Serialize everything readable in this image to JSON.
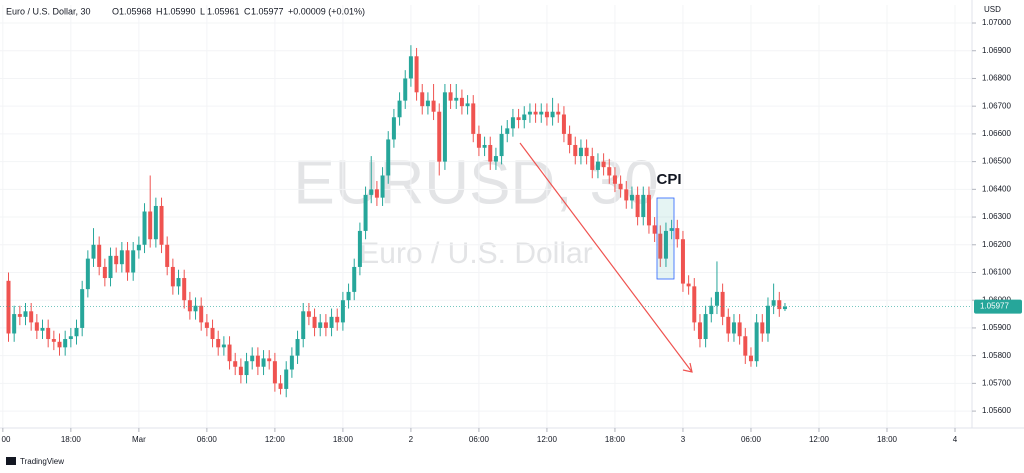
{
  "chart_data": {
    "type": "candlestick",
    "header": {
      "symbol": "Euro / U.S. Dollar, 30",
      "ohlc": [
        {
          "label": "O",
          "value": "1.05968"
        },
        {
          "label": "H",
          "value": "1.05990"
        },
        {
          "label": "L",
          "value": "1.05961"
        },
        {
          "label": "C",
          "value": "1.05977"
        }
      ],
      "change": "+0.00009 (+0.01%)"
    },
    "watermark": {
      "ticker": "EURUSD, 30",
      "name": "Euro / U.S. Dollar"
    },
    "annotation": "CPI",
    "currency": "USD",
    "branding": "TradingView",
    "up_color": "#26a69a",
    "down_color": "#ef5350",
    "grid": true,
    "xlim": [
      -0.5,
      171
    ],
    "xticks": [
      {
        "value": 0,
        "label": "00"
      },
      {
        "value": 12,
        "label": "18:00"
      },
      {
        "value": 24,
        "label": "Mar"
      },
      {
        "value": 36,
        "label": "06:00"
      },
      {
        "value": 48,
        "label": "12:00"
      },
      {
        "value": 60,
        "label": "18:00"
      },
      {
        "value": 72,
        "label": "2"
      },
      {
        "value": 84,
        "label": "06:00"
      },
      {
        "value": 96,
        "label": "12:00"
      },
      {
        "value": 108,
        "label": "18:00"
      },
      {
        "value": 120,
        "label": "3"
      },
      {
        "value": 132,
        "label": "06:00"
      },
      {
        "value": 144,
        "label": "12:00"
      },
      {
        "value": 156,
        "label": "18:00"
      },
      {
        "value": 168,
        "label": "4"
      }
    ],
    "ylim": [
      1.05539,
      1.07065
    ],
    "yticks": [
      {
        "value": 1.056,
        "label": "1.05600"
      },
      {
        "value": 1.057,
        "label": "1.05700"
      },
      {
        "value": 1.058,
        "label": "1.05800"
      },
      {
        "value": 1.059,
        "label": "1.05900"
      },
      {
        "value": 1.06,
        "label": "1.06000"
      },
      {
        "value": 1.061,
        "label": "1.06100"
      },
      {
        "value": 1.062,
        "label": "1.06200"
      },
      {
        "value": 1.063,
        "label": "1.06300"
      },
      {
        "value": 1.064,
        "label": "1.06400"
      },
      {
        "value": 1.065,
        "label": "1.06500"
      },
      {
        "value": 1.066,
        "label": "1.06600"
      },
      {
        "value": 1.067,
        "label": "1.06700"
      },
      {
        "value": 1.068,
        "label": "1.06800"
      },
      {
        "value": 1.069,
        "label": "1.06900"
      },
      {
        "value": 1.07,
        "label": "1.07000"
      }
    ],
    "x": [
      1,
      2,
      3,
      4,
      5,
      6,
      7,
      8,
      9,
      10,
      11,
      12,
      13,
      14,
      15,
      16,
      17,
      18,
      19,
      20,
      21,
      22,
      23,
      24,
      25,
      26,
      27,
      28,
      29,
      30,
      31,
      32,
      33,
      34,
      35,
      36,
      37,
      38,
      39,
      40,
      41,
      42,
      43,
      44,
      45,
      46,
      47,
      48,
      49,
      50,
      51,
      52,
      53,
      54,
      55,
      56,
      57,
      58,
      59,
      60,
      61,
      62,
      63,
      64,
      65,
      66,
      67,
      68,
      69,
      70,
      71,
      72,
      73,
      74,
      75,
      76,
      77,
      78,
      79,
      80,
      81,
      82,
      83,
      84,
      85,
      86,
      87,
      88,
      89,
      90,
      91,
      92,
      93,
      94,
      95,
      96,
      97,
      98,
      99,
      100,
      101,
      102,
      103,
      104,
      105,
      106,
      107,
      108,
      109,
      110,
      111,
      112,
      113,
      114,
      115,
      116,
      117,
      118,
      119,
      120,
      121,
      122,
      123,
      124,
      125,
      126,
      127,
      128,
      129,
      130,
      131,
      132,
      133,
      134,
      135,
      136,
      137,
      138
    ],
    "open": [
      1.0607,
      1.0588,
      1.0595,
      1.0594,
      1.0596,
      1.0592,
      1.0589,
      1.059,
      1.0586,
      1.0585,
      1.0583,
      1.0586,
      1.0587,
      1.059,
      1.0604,
      1.0615,
      1.062,
      1.0612,
      1.0608,
      1.0616,
      1.0613,
      1.0618,
      1.061,
      1.0618,
      1.062,
      1.0632,
      1.0622,
      1.0634,
      1.062,
      1.0612,
      1.0605,
      1.0608,
      1.06,
      1.0596,
      1.0598,
      1.0592,
      1.059,
      1.0586,
      1.0583,
      1.0584,
      1.0578,
      1.0576,
      1.0573,
      1.0578,
      1.058,
      1.0576,
      1.0579,
      1.0578,
      1.057,
      1.0568,
      1.0575,
      1.058,
      1.0586,
      1.0596,
      1.0594,
      1.059,
      1.0592,
      1.059,
      1.0594,
      1.0592,
      1.06,
      1.0603,
      1.0612,
      1.0625,
      1.0638,
      1.064,
      1.0637,
      1.0645,
      1.0658,
      1.0666,
      1.0672,
      1.068,
      1.0688,
      1.0675,
      1.067,
      1.0672,
      1.0668,
      1.065,
      1.0675,
      1.0672,
      1.0673,
      1.067,
      1.0671,
      1.066,
      1.0655,
      1.0656,
      1.065,
      1.0652,
      1.066,
      1.0662,
      1.0666,
      1.0665,
      1.0667,
      1.0668,
      1.0667,
      1.0668,
      1.0666,
      1.0668,
      1.0667,
      1.066,
      1.0656,
      1.0652,
      1.0655,
      1.0652,
      1.0647,
      1.065,
      1.0648,
      1.0645,
      1.0642,
      1.064,
      1.0636,
      1.0638,
      1.063,
      1.0638,
      1.0627,
      1.0624,
      1.0615,
      1.0625,
      1.0626,
      1.0622,
      1.0606,
      1.0605,
      1.0592,
      1.0586,
      1.0595,
      1.0598,
      1.0603,
      1.0594,
      1.0588,
      1.0592,
      1.0587,
      1.058,
      1.0578,
      1.0592,
      1.0588,
      1.0598,
      1.06,
      1.05968
    ],
    "high": [
      1.061,
      1.0598,
      1.0598,
      1.0599,
      1.0599,
      1.0595,
      1.0593,
      1.0593,
      1.0589,
      1.0588,
      1.0589,
      1.059,
      1.0593,
      1.0607,
      1.0618,
      1.0626,
      1.0623,
      1.0615,
      1.0619,
      1.0619,
      1.0621,
      1.0621,
      1.0621,
      1.0623,
      1.0635,
      1.0645,
      1.0637,
      1.0637,
      1.0623,
      1.0615,
      1.0611,
      1.0611,
      1.0603,
      1.0601,
      1.0601,
      1.0595,
      1.0593,
      1.0589,
      1.0587,
      1.0587,
      1.0581,
      1.0579,
      1.0581,
      1.0583,
      1.0583,
      1.0582,
      1.0582,
      1.0581,
      1.0573,
      1.0578,
      1.0583,
      1.0589,
      1.0599,
      1.0599,
      1.0597,
      1.0595,
      1.0595,
      1.0597,
      1.0597,
      1.0603,
      1.0606,
      1.0615,
      1.0628,
      1.0641,
      1.0652,
      1.0643,
      1.0648,
      1.0661,
      1.0669,
      1.0675,
      1.0683,
      1.0692,
      1.0691,
      1.0678,
      1.0675,
      1.0678,
      1.0671,
      1.0678,
      1.0678,
      1.0678,
      1.0676,
      1.0674,
      1.0674,
      1.0663,
      1.0659,
      1.0659,
      1.0655,
      1.0663,
      1.0665,
      1.0669,
      1.0669,
      1.067,
      1.0671,
      1.0671,
      1.0671,
      1.0671,
      1.0673,
      1.0671,
      1.067,
      1.0663,
      1.0659,
      1.0658,
      1.0658,
      1.0655,
      1.0653,
      1.0653,
      1.0651,
      1.0648,
      1.0645,
      1.0643,
      1.0641,
      1.0641,
      1.0641,
      1.0641,
      1.063,
      1.0627,
      1.0628,
      1.0629,
      1.0629,
      1.0625,
      1.0609,
      1.0608,
      1.0595,
      1.0598,
      1.0601,
      1.0614,
      1.0606,
      1.0597,
      1.0595,
      1.0595,
      1.059,
      1.0583,
      1.0595,
      1.0595,
      1.0601,
      1.0606,
      1.0603,
      1.0599
    ],
    "low": [
      1.0585,
      1.0585,
      1.0591,
      1.0591,
      1.0589,
      1.0586,
      1.0586,
      1.0583,
      1.0582,
      1.058,
      1.058,
      1.0583,
      1.0584,
      1.0587,
      1.0601,
      1.0612,
      1.0609,
      1.0605,
      1.0605,
      1.061,
      1.061,
      1.0607,
      1.0607,
      1.0615,
      1.0617,
      1.0619,
      1.0619,
      1.0617,
      1.0609,
      1.0602,
      1.0602,
      1.0597,
      1.0593,
      1.0593,
      1.0589,
      1.0587,
      1.0583,
      1.058,
      1.058,
      1.0575,
      1.0573,
      1.057,
      1.057,
      1.0575,
      1.0573,
      1.0573,
      1.0575,
      1.0567,
      1.0566,
      1.0565,
      1.0572,
      1.0577,
      1.0583,
      1.0591,
      1.0587,
      1.0587,
      1.0587,
      1.0587,
      1.0589,
      1.0589,
      1.0597,
      1.06,
      1.0609,
      1.0622,
      1.0635,
      1.0634,
      1.0634,
      1.0642,
      1.0655,
      1.0663,
      1.0669,
      1.0677,
      1.0672,
      1.0667,
      1.0667,
      1.0665,
      1.0645,
      1.0647,
      1.0669,
      1.0669,
      1.0667,
      1.0667,
      1.0657,
      1.0652,
      1.0652,
      1.0647,
      1.0647,
      1.0649,
      1.0657,
      1.0659,
      1.0662,
      1.0662,
      1.0664,
      1.0664,
      1.0664,
      1.0663,
      1.0663,
      1.0664,
      1.0657,
      1.0653,
      1.0649,
      1.0649,
      1.0649,
      1.0644,
      1.0644,
      1.0645,
      1.0642,
      1.0639,
      1.0637,
      1.0633,
      1.0633,
      1.0627,
      1.0627,
      1.0624,
      1.0621,
      1.0612,
      1.0612,
      1.0622,
      1.0619,
      1.0603,
      1.0602,
      1.0589,
      1.0583,
      1.0583,
      1.0592,
      1.0595,
      1.0591,
      1.0585,
      1.0585,
      1.0584,
      1.0577,
      1.0576,
      1.0576,
      1.0585,
      1.0585,
      1.0595,
      1.0594,
      1.05961
    ],
    "close": [
      1.0588,
      1.0595,
      1.0594,
      1.0596,
      1.0592,
      1.0589,
      1.059,
      1.0586,
      1.0585,
      1.0583,
      1.0586,
      1.0587,
      1.059,
      1.0604,
      1.0615,
      1.062,
      1.0612,
      1.0608,
      1.0616,
      1.0613,
      1.0618,
      1.061,
      1.0618,
      1.062,
      1.0632,
      1.0622,
      1.0634,
      1.062,
      1.0612,
      1.0605,
      1.0608,
      1.06,
      1.0596,
      1.0598,
      1.0592,
      1.059,
      1.0586,
      1.0583,
      1.0584,
      1.0578,
      1.0576,
      1.0573,
      1.0578,
      1.058,
      1.0576,
      1.0579,
      1.0578,
      1.057,
      1.0568,
      1.0575,
      1.058,
      1.0586,
      1.0596,
      1.0594,
      1.059,
      1.0592,
      1.059,
      1.0594,
      1.0592,
      1.06,
      1.0603,
      1.0612,
      1.0625,
      1.0638,
      1.064,
      1.0637,
      1.0645,
      1.0658,
      1.0666,
      1.0672,
      1.068,
      1.0688,
      1.0675,
      1.067,
      1.0672,
      1.0668,
      1.065,
      1.0675,
      1.0672,
      1.0673,
      1.067,
      1.0671,
      1.066,
      1.0655,
      1.0656,
      1.065,
      1.0652,
      1.066,
      1.0662,
      1.0666,
      1.0665,
      1.0667,
      1.0668,
      1.0667,
      1.0668,
      1.0666,
      1.0668,
      1.0667,
      1.066,
      1.0656,
      1.0652,
      1.0655,
      1.0652,
      1.0647,
      1.065,
      1.0648,
      1.0645,
      1.0642,
      1.064,
      1.0636,
      1.0638,
      1.063,
      1.0638,
      1.0627,
      1.0624,
      1.0615,
      1.0625,
      1.0626,
      1.0622,
      1.0606,
      1.0605,
      1.0592,
      1.0586,
      1.0595,
      1.0598,
      1.0603,
      1.0594,
      1.0588,
      1.0592,
      1.0587,
      1.058,
      1.0578,
      1.0592,
      1.0588,
      1.0598,
      1.06,
      1.05968,
      1.05977
    ]
  }
}
